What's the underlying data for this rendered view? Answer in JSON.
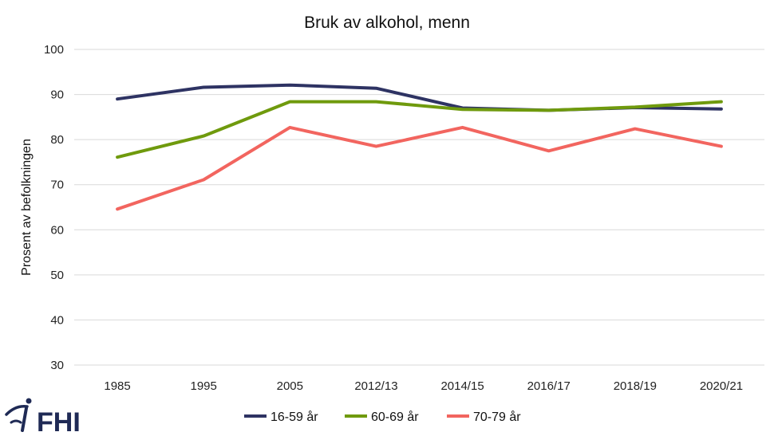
{
  "chart_data": {
    "type": "line",
    "title": "Bruk av alkohol, menn",
    "ylabel": "Prosent av befolkningen",
    "xlabel": "",
    "categories": [
      "1985",
      "1995",
      "2005",
      "2012/13",
      "2014/15",
      "2016/17",
      "2018/19",
      "2020/21"
    ],
    "ylim": [
      30,
      100
    ],
    "yticks": [
      30,
      40,
      50,
      60,
      70,
      80,
      90,
      100
    ],
    "grid": true,
    "legend_position": "bottom",
    "series": [
      {
        "name": "16-59 år",
        "color": "#2e3363",
        "values": [
          89.0,
          91.6,
          92.1,
          91.4,
          87.0,
          86.5,
          87.1,
          86.8
        ]
      },
      {
        "name": "60-69 år",
        "color": "#6f9a0d",
        "values": [
          76.1,
          80.8,
          88.4,
          88.4,
          86.7,
          86.5,
          87.2,
          88.4
        ]
      },
      {
        "name": "70-79 år",
        "color": "#f2655f",
        "values": [
          64.6,
          71.1,
          82.7,
          78.5,
          82.7,
          77.5,
          82.4,
          78.5
        ]
      }
    ]
  },
  "logo": {
    "text": "FHI"
  }
}
